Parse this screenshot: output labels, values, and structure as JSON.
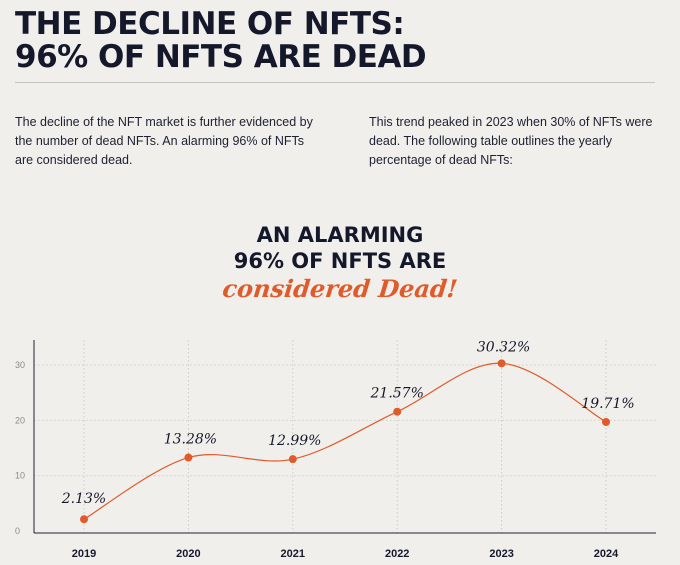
{
  "header": {
    "title_line1": "THE DECLINE OF NFTS:",
    "title_line2": "96% OF NFTS ARE DEAD"
  },
  "intro": {
    "left": "The decline of the NFT market is further evidenced by the number of dead NFTs. An alarming 96% of NFTs are considered dead.",
    "right": "This trend peaked in 2023 when 30% of NFTs were dead. The following table outlines the yearly percentage of dead NFTs:"
  },
  "callout": {
    "line1": "AN ALARMING",
    "line2": "96% OF NFTS ARE",
    "line3": "considered Dead!"
  },
  "colors": {
    "accent": "#e05a2a",
    "text": "#15182b",
    "background": "#f1efec"
  },
  "chart_data": {
    "type": "line",
    "title": "AN ALARMING 96% OF NFTS ARE considered Dead!",
    "xlabel": "",
    "ylabel": "",
    "categories": [
      "2019",
      "2020",
      "2021",
      "2022",
      "2023",
      "2024"
    ],
    "values": [
      2.13,
      13.28,
      12.99,
      21.57,
      30.32,
      19.71
    ],
    "data_labels": [
      "2.13%",
      "13.28%",
      "12.99%",
      "21.57%",
      "30.32%",
      "19.71%"
    ],
    "yticks": [
      0,
      10,
      20,
      30
    ],
    "ylim": [
      0,
      32
    ],
    "grid": true,
    "smooth": true
  }
}
